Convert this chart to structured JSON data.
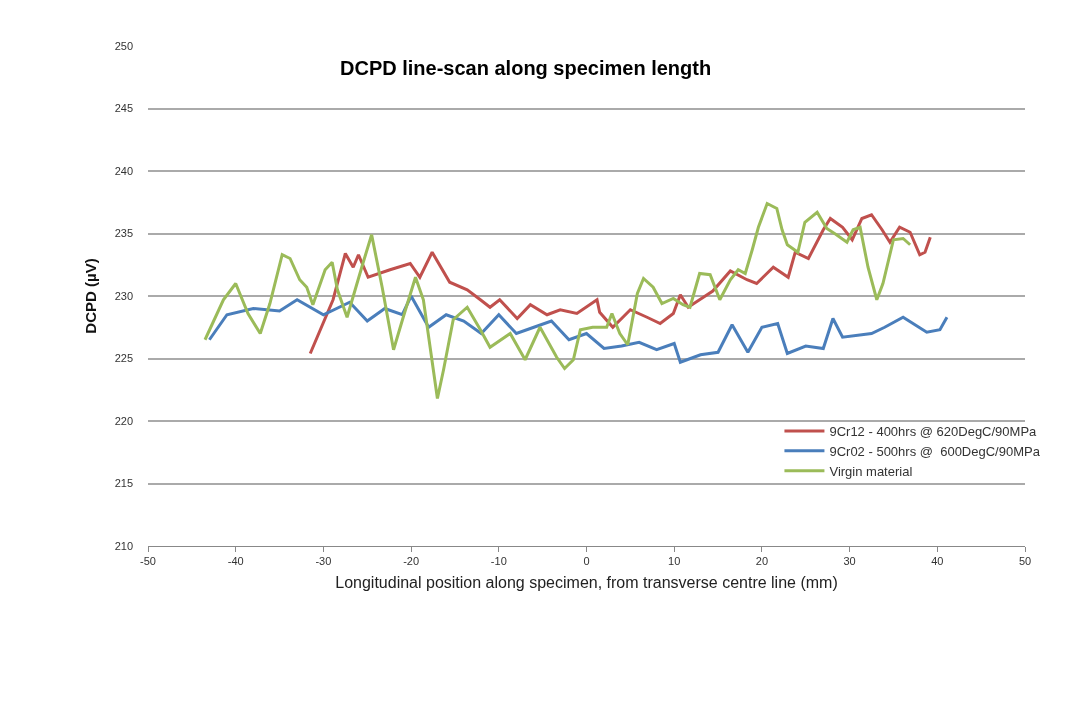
{
  "chart_data": {
    "type": "line",
    "title": "DCPD line-scan along specimen length",
    "xlabel": "Longitudinal position along specimen, from transverse centre line (mm)",
    "ylabel": "DCPD (µV)",
    "xlim": [
      -50,
      50
    ],
    "xticks": [
      -50,
      -40,
      -30,
      -20,
      -10,
      0,
      10,
      20,
      30,
      40,
      50
    ],
    "ylim": [
      210,
      250
    ],
    "yticks": [
      210,
      215,
      220,
      225,
      230,
      235,
      240,
      245,
      250
    ],
    "grid": "y",
    "legend": "right",
    "marker": "none",
    "line_style": "solid",
    "series": [
      {
        "name": "9Cr12 - 400hrs @ 620DegC/90MPa",
        "color": "#c0504d",
        "x": [
          -31.5,
          -28.9,
          -27.5,
          -26.6,
          -26,
          -24.9,
          -22.4,
          -20.1,
          -19,
          -17.6,
          -15.6,
          -13.6,
          -12.1,
          -11,
          -9.9,
          -7.9,
          -6.4,
          -4.5,
          -3,
          -1.1,
          1.2,
          1.5,
          3,
          5,
          6.9,
          8.4,
          9.9,
          10.7,
          11.6,
          14.4,
          16.4,
          18.3,
          19.4,
          21.3,
          23,
          23.8,
          25.3,
          27,
          27.8,
          29.2,
          30.3,
          31.4,
          32.5,
          33.7,
          34.6,
          35.7,
          36.9,
          38,
          38.6,
          39.2
        ],
        "values": [
          225.4,
          229.7,
          233.4,
          232.3,
          233.3,
          231.5,
          232.1,
          232.6,
          231.5,
          233.5,
          231.1,
          230.5,
          229.7,
          229.1,
          229.7,
          228.2,
          229.3,
          228.5,
          228.9,
          228.6,
          229.7,
          228.7,
          227.5,
          228.9,
          228.3,
          227.8,
          228.6,
          230.1,
          229.1,
          230.4,
          232,
          231.3,
          231,
          232.3,
          231.5,
          233.5,
          233,
          235.3,
          236.2,
          235.5,
          234.5,
          236.2,
          236.5,
          235.3,
          234.3,
          235.5,
          235.1,
          233.3,
          233.5,
          234.7
        ]
      },
      {
        "name": "9Cr02 - 500hrs @  600DegC/90MPa",
        "color": "#4a7ebb",
        "x": [
          -43,
          -41,
          -38,
          -35,
          -33,
          -30,
          -27,
          -25,
          -23,
          -21,
          -20,
          -18,
          -16,
          -14,
          -12,
          -10,
          -8,
          -6,
          -4,
          -2,
          0,
          2,
          4,
          6,
          8,
          10,
          10.7,
          13,
          15,
          16.6,
          18.4,
          20,
          21.8,
          22.9,
          25,
          27,
          28.1,
          29.2,
          32.5,
          34,
          36.1,
          38.8,
          40.3,
          41.1
        ],
        "values": [
          226.5,
          228.5,
          229,
          228.8,
          229.7,
          228.5,
          229.5,
          228,
          229,
          228.5,
          230,
          227.5,
          228.5,
          228,
          227,
          228.5,
          227,
          227.5,
          228,
          226.5,
          227,
          225.8,
          226,
          226.3,
          225.7,
          226.2,
          224.7,
          225.3,
          225.5,
          227.7,
          225.5,
          227.5,
          227.8,
          225.4,
          226,
          225.8,
          228.2,
          226.7,
          227,
          227.5,
          228.3,
          227.1,
          227.3,
          228.3
        ]
      },
      {
        "name": "Virgin material",
        "color": "#9bbb59",
        "x": [
          -43.5,
          -41.4,
          -40,
          -38.6,
          -37.2,
          -36.1,
          -34.7,
          -33.8,
          -32.7,
          -31.9,
          -31.2,
          -29.8,
          -29,
          -28.4,
          -27.3,
          -25.5,
          -24.5,
          -23.3,
          -22,
          -20.9,
          -19.5,
          -18.6,
          -17,
          -16.3,
          -15.2,
          -13.6,
          -12.1,
          -11,
          -8.7,
          -7,
          -5.3,
          -3.4,
          -2.5,
          -1.5,
          -0.7,
          0.7,
          2.3,
          2.9,
          3.8,
          4.7,
          5.8,
          6.5,
          7.6,
          8.6,
          9.9,
          11,
          11.8,
          12.9,
          14.1,
          15.2,
          16.4,
          17.3,
          18.1,
          18.9,
          19.6,
          20.6,
          21.7,
          22.3,
          22.9,
          24.1,
          24.9,
          26.3,
          27.4,
          28.5,
          29.7,
          30.4,
          31.2,
          32.1,
          33.1,
          33.8,
          35,
          36.1,
          36.9
        ],
        "values": [
          226.5,
          229.7,
          231,
          228.6,
          227,
          229.4,
          233.3,
          233,
          231.3,
          230.7,
          229.3,
          232.1,
          232.7,
          230.5,
          228.3,
          232.6,
          234.9,
          230.7,
          225.7,
          228.3,
          231.5,
          229.7,
          221.8,
          224.1,
          228.1,
          229.1,
          227.3,
          225.9,
          227,
          224.9,
          227.5,
          225.1,
          224.2,
          224.9,
          227.3,
          227.5,
          227.5,
          228.6,
          227,
          226.1,
          230.2,
          231.4,
          230.7,
          229.4,
          229.8,
          229.3,
          229.1,
          231.8,
          231.7,
          229.7,
          231.3,
          232.1,
          231.8,
          233.7,
          235.5,
          237.4,
          237,
          235.3,
          234.1,
          233.5,
          235.9,
          236.7,
          235.4,
          234.9,
          234.3,
          235.3,
          235.5,
          232.3,
          229.7,
          231,
          234.5,
          234.6,
          234.1
        ]
      }
    ]
  }
}
